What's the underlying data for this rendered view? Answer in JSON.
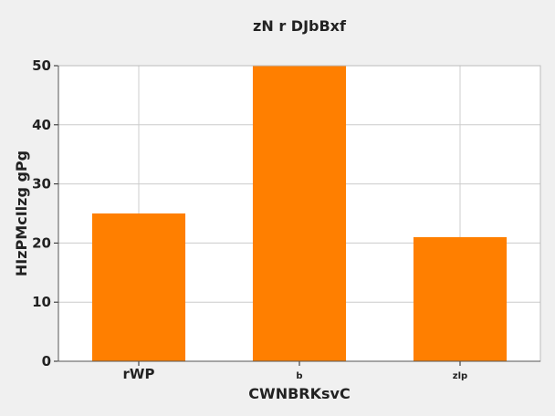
{
  "chart_data": {
    "type": "bar",
    "title": "zN r DJbBxf",
    "xlabel": "CWNBRKsvC",
    "ylabel": "HIzPMcIlzg gPg",
    "categories": [
      "rWP",
      "b",
      "zlp"
    ],
    "values": [
      25,
      50,
      21
    ],
    "ylim": [
      0,
      50
    ],
    "yticks": [
      0,
      10,
      20,
      30,
      40,
      50
    ],
    "grid": true,
    "bar_color": "#ff7f00",
    "background_color": "#f0f0f0",
    "plot_background_color": "#ffffff",
    "grid_color": "#cccccc"
  }
}
